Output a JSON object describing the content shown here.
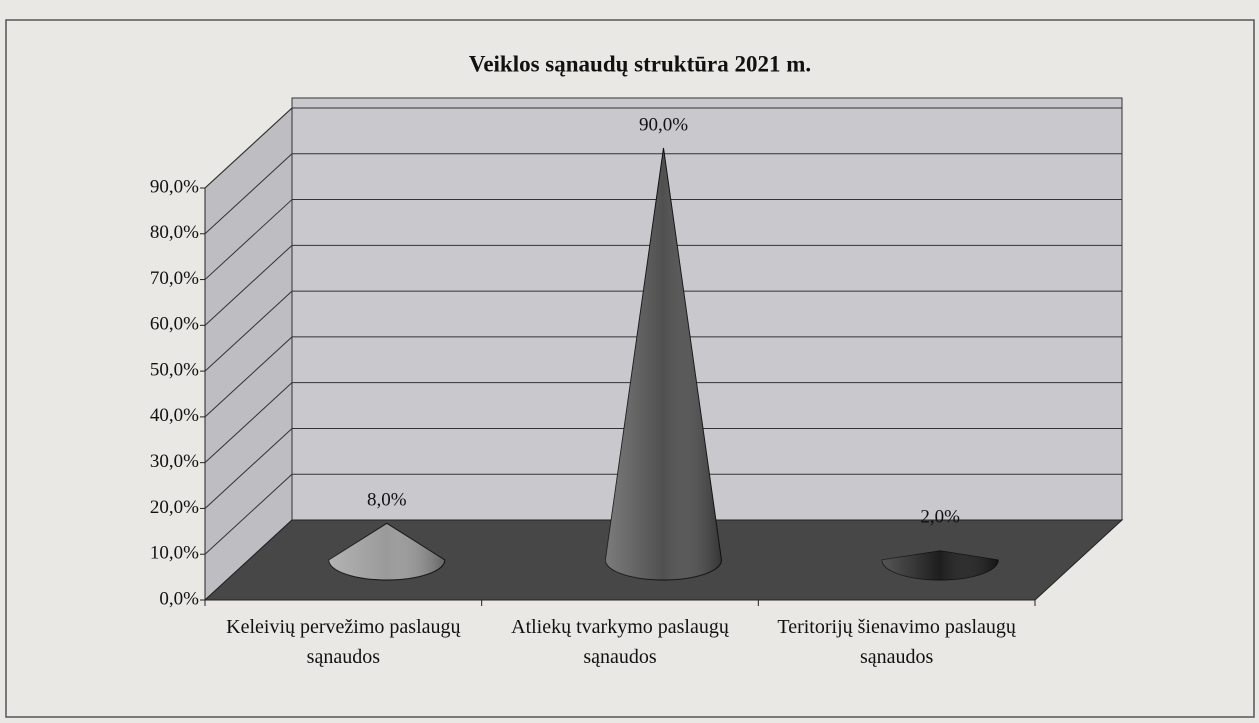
{
  "chart_data": {
    "type": "cone",
    "title": "Veiklos sąnaudų struktūra 2021 m.",
    "categories": [
      "Keleivių pervežimo paslaugų sąnaudos",
      "Atliekų tvarkymo paslaugų sąnaudos",
      "Teritorijų šienavimo paslaugų sąnaudos"
    ],
    "values": [
      8,
      90,
      2
    ],
    "value_labels": [
      "8,0%",
      "90,0%",
      "2,0%"
    ],
    "colors": [
      "#9a9a9a",
      "#505050",
      "#1e1e1e"
    ],
    "ylim": [
      0,
      90
    ],
    "yticks": [
      {
        "value": 0,
        "label": "0,0%"
      },
      {
        "value": 10,
        "label": "10,0%"
      },
      {
        "value": 20,
        "label": "20,0%"
      },
      {
        "value": 30,
        "label": "30,0%"
      },
      {
        "value": 40,
        "label": "40,0%"
      },
      {
        "value": 50,
        "label": "50,0%"
      },
      {
        "value": 60,
        "label": "60,0%"
      },
      {
        "value": 70,
        "label": "70,0%"
      },
      {
        "value": 80,
        "label": "80,0%"
      },
      {
        "value": 90,
        "label": "90,0%"
      }
    ],
    "grid": true
  }
}
